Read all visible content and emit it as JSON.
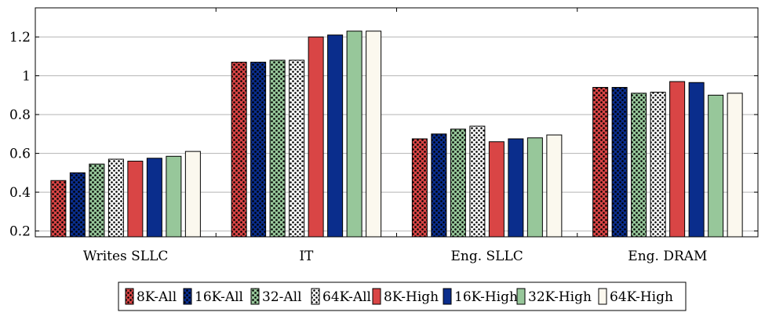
{
  "chart_data": {
    "type": "bar",
    "title": "",
    "xlabel": "",
    "ylabel": "",
    "ylim": [
      0.17,
      1.35
    ],
    "yticks": [
      0.2,
      0.4,
      0.6,
      0.8,
      1,
      1.2
    ],
    "ytick_labels": [
      "0.2",
      "0.4",
      "0.6",
      "0.8",
      "1",
      "1.2"
    ],
    "grid": "horizontal",
    "legend_position": "bottom",
    "categories": [
      "Writes SLLC",
      "IT",
      "Eng. SLLC",
      "Eng. DRAM"
    ],
    "series": [
      {
        "name": "8K-All",
        "values": [
          0.46,
          1.07,
          0.675,
          0.94
        ],
        "color": "#d94545",
        "pattern": "dots"
      },
      {
        "name": "16K-All",
        "values": [
          0.5,
          1.07,
          0.7,
          0.94
        ],
        "color": "#0a2d8c",
        "pattern": "dots"
      },
      {
        "name": "32-All",
        "values": [
          0.545,
          1.08,
          0.725,
          0.91
        ],
        "color": "#97c79a",
        "pattern": "dots"
      },
      {
        "name": "64K-All",
        "values": [
          0.57,
          1.08,
          0.74,
          0.915
        ],
        "color": "#fbf8ee",
        "pattern": "dots"
      },
      {
        "name": "8K-High",
        "values": [
          0.56,
          1.2,
          0.66,
          0.97
        ],
        "color": "#d94545",
        "pattern": "solid"
      },
      {
        "name": "16K-High",
        "values": [
          0.575,
          1.21,
          0.675,
          0.965
        ],
        "color": "#0a2d8c",
        "pattern": "solid"
      },
      {
        "name": "32K-High",
        "values": [
          0.585,
          1.23,
          0.68,
          0.9
        ],
        "color": "#97c79a",
        "pattern": "solid"
      },
      {
        "name": "64K-High",
        "values": [
          0.61,
          1.23,
          0.695,
          0.91
        ],
        "color": "#fbf8ee",
        "pattern": "solid"
      }
    ]
  }
}
